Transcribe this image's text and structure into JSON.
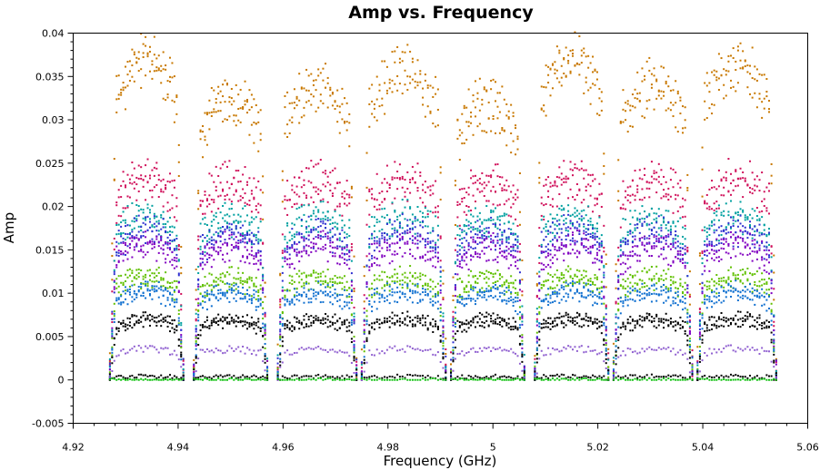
{
  "chart_data": {
    "type": "scatter",
    "title": "Amp vs. Frequency",
    "xlabel": "Frequency (GHz)",
    "ylabel": "Amp",
    "xlim": [
      4.92,
      5.06
    ],
    "ylim": [
      -0.005,
      0.04
    ],
    "xticks": [
      "4.92",
      "4.94",
      "4.96",
      "4.98",
      "5",
      "5.02",
      "5.04",
      "5.06"
    ],
    "yticks": [
      "-0.005",
      "0",
      "0.005",
      "0.01",
      "0.015",
      "0.02",
      "0.025",
      "0.03",
      "0.035",
      "0.04"
    ],
    "grid": false,
    "legend": "none",
    "spectral_windows": [
      {
        "start": 4.927,
        "end": 4.941,
        "peak_amp": 0.0355
      },
      {
        "start": 4.943,
        "end": 4.957,
        "peak_amp": 0.031
      },
      {
        "start": 4.959,
        "end": 4.974,
        "peak_amp": 0.0325
      },
      {
        "start": 4.975,
        "end": 4.991,
        "peak_amp": 0.034
      },
      {
        "start": 4.992,
        "end": 5.006,
        "peak_amp": 0.0305
      },
      {
        "start": 5.008,
        "end": 5.022,
        "peak_amp": 0.0355
      },
      {
        "start": 5.023,
        "end": 5.038,
        "peak_amp": 0.0325
      },
      {
        "start": 5.039,
        "end": 5.054,
        "peak_amp": 0.035
      }
    ],
    "series_bands": [
      {
        "color": "#c87800",
        "level": 0.029
      },
      {
        "color": "#d0105a",
        "level": 0.0215
      },
      {
        "color": "#00a0a0",
        "level": 0.0175
      },
      {
        "color": "#3030d0",
        "level": 0.016
      },
      {
        "color": "#8000c0",
        "level": 0.0145
      },
      {
        "color": "#60c000",
        "level": 0.011
      },
      {
        "color": "#1070d0",
        "level": 0.0095
      },
      {
        "color": "#000000",
        "level": 0.0065
      },
      {
        "color": "#9060d0",
        "level": 0.0035
      },
      {
        "color": "#000000",
        "level": 0.0004
      },
      {
        "color": "#10c010",
        "level": 0.0
      }
    ]
  }
}
